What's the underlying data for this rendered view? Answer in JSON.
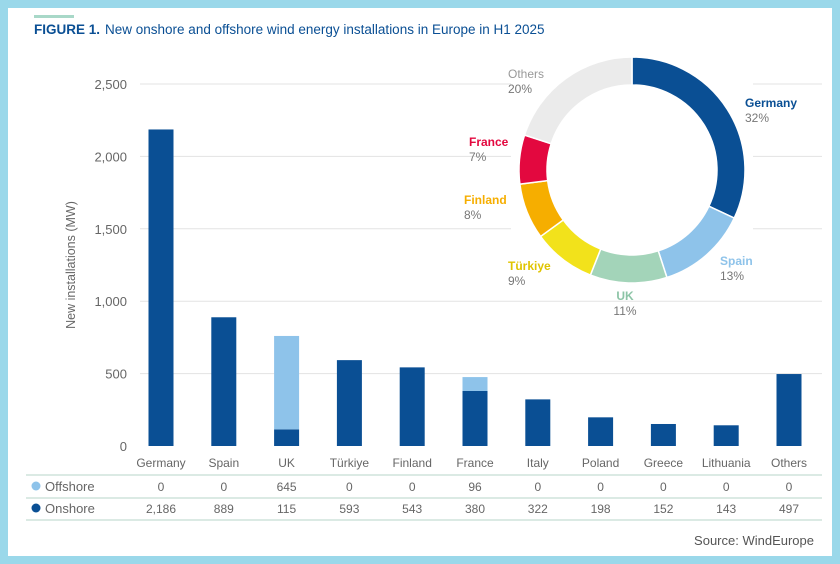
{
  "title": {
    "label": "FIGURE 1.",
    "text": "New onshore and offshore wind energy installations in Europe in H1 2025"
  },
  "source": "Source: WindEurope",
  "colors": {
    "offshore": "#8ec3ea",
    "onshore": "#0a4f94",
    "title": "#0a4f94",
    "frame": "#9ad8ea"
  },
  "chart_data": [
    {
      "type": "bar",
      "stacked": true,
      "categories": [
        "Germany",
        "Spain",
        "UK",
        "Türkiye",
        "Finland",
        "France",
        "Italy",
        "Poland",
        "Greece",
        "Lithuania",
        "Others"
      ],
      "series": [
        {
          "name": "Onshore",
          "color": "#0a4f94",
          "values": [
            2186,
            889,
            115,
            593,
            543,
            380,
            322,
            198,
            152,
            143,
            497
          ],
          "labels": [
            "2,186",
            "889",
            "115",
            "593",
            "543",
            "380",
            "322",
            "198",
            "152",
            "143",
            "497"
          ]
        },
        {
          "name": "Offshore",
          "color": "#8ec3ea",
          "values": [
            0,
            0,
            645,
            0,
            0,
            96,
            0,
            0,
            0,
            0,
            0
          ],
          "labels": [
            "0",
            "0",
            "645",
            "0",
            "0",
            "96",
            "0",
            "0",
            "0",
            "0",
            "0"
          ]
        }
      ],
      "ylabel": "New installations (MW)",
      "ylim": [
        0,
        2500
      ],
      "yticks": [
        0,
        500,
        1000,
        1500,
        2000,
        2500
      ],
      "ytick_labels": [
        "0",
        "500",
        "1,000",
        "1,500",
        "2,000",
        "2,500"
      ],
      "grid": true,
      "legend": "data-table-below"
    },
    {
      "type": "pie",
      "donut": true,
      "slices": [
        {
          "name": "Germany",
          "value": 32,
          "label": "32%",
          "color": "#0a4f94"
        },
        {
          "name": "Spain",
          "value": 13,
          "label": "13%",
          "color": "#8ec3ea"
        },
        {
          "name": "UK",
          "value": 11,
          "label": "11%",
          "color": "#a3d4b9"
        },
        {
          "name": "Türkiye",
          "value": 9,
          "label": "9%",
          "color": "#f2e21b"
        },
        {
          "name": "Finland",
          "value": 8,
          "label": "8%",
          "color": "#f6ae00"
        },
        {
          "name": "France",
          "value": 7,
          "label": "7%",
          "color": "#e3083f"
        },
        {
          "name": "Others",
          "value": 20,
          "label": "20%",
          "color": "#ebebeb"
        }
      ]
    }
  ]
}
